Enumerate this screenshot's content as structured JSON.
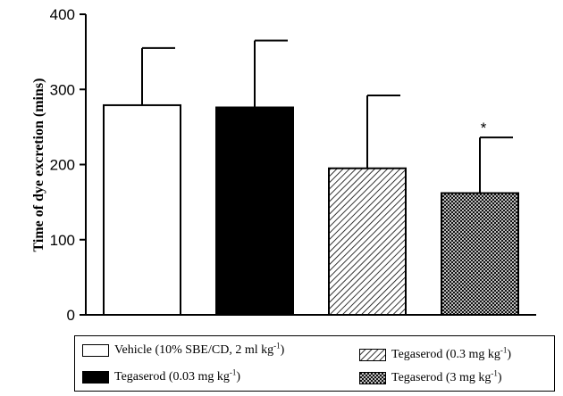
{
  "chart_data": {
    "type": "bar",
    "title": "",
    "xlabel": "",
    "ylabel": "Time of dye excretion (mins)",
    "ylim": [
      0,
      400
    ],
    "yticks": [
      0,
      100,
      200,
      300,
      400
    ],
    "categories": [
      "Vehicle (10% SBE/CD, 2 ml kg-1)",
      "Tegaserod (0.03 mg kg-1)",
      "Tegaserod (0.3 mg kg-1)",
      "Tegaserod (3 mg kg-1)"
    ],
    "values": [
      279,
      276,
      195,
      162
    ],
    "error_upper": [
      355,
      365,
      292,
      236
    ],
    "significance": [
      "",
      "",
      "",
      "*"
    ],
    "fills": [
      "white",
      "black",
      "diagonal-hatch",
      "crosshatch"
    ],
    "grid": false,
    "legend_placement": "bottom"
  },
  "legend": [
    {
      "main": "Vehicle (10% SBE/CD, 2 ml kg",
      "sup": "-1",
      "tail": ")",
      "fill": "white"
    },
    {
      "main": "Tegaserod (0.03 mg kg",
      "sup": "-1",
      "tail": ")",
      "fill": "black"
    },
    {
      "main": "Tegaserod (0.3 mg kg",
      "sup": "-1",
      "tail": ")",
      "fill": "diagonal-hatch"
    },
    {
      "main": "Tegaserod (3 mg kg",
      "sup": "-1",
      "tail": ")",
      "fill": "crosshatch"
    }
  ]
}
